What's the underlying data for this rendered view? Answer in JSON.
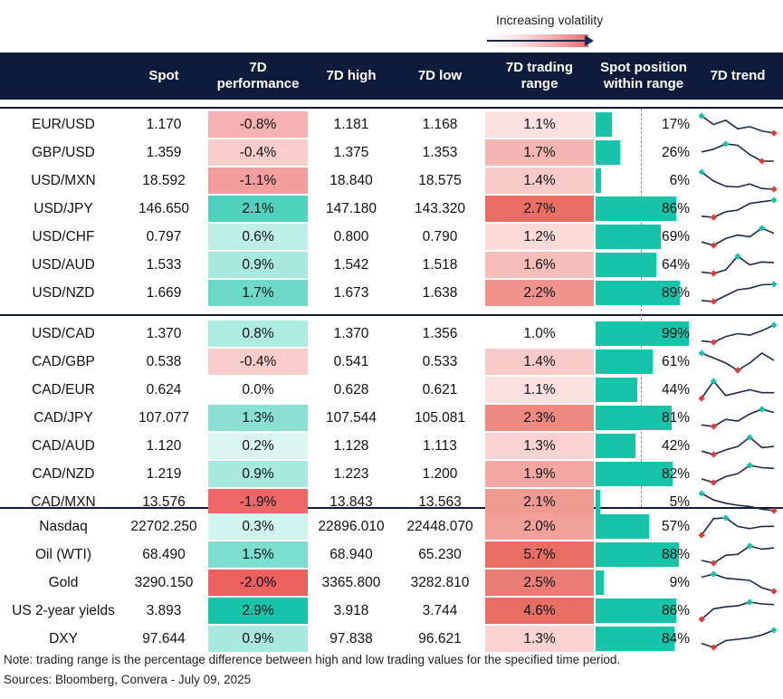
{
  "legend": {
    "label": "Increasing volatility"
  },
  "headers": {
    "spot": "Spot",
    "perf": "7D\nperformance",
    "high": "7D high",
    "low": "7D low",
    "range": "7D trading\nrange",
    "position": "Spot position\nwithin range",
    "trend": "7D trend"
  },
  "colors": {
    "header_bg": "#0e1b3a",
    "bar": "#17c3a9",
    "trend_line": "#1b2a4a",
    "trend_high": "#17c3a9",
    "trend_low": "#e03c3c"
  },
  "chart_data": {
    "type": "table",
    "groups": [
      {
        "rows": [
          {
            "name": "EUR/USD",
            "spot": "1.170",
            "perf": "-0.8%",
            "perf_value": -0.8,
            "high": "1.181",
            "low": "1.168",
            "range": "1.1%",
            "range_value": 1.1,
            "position": "17%",
            "position_value": 17,
            "trend": [
              1.178,
              1.174,
              1.176,
              1.172,
              1.173,
              1.171,
              1.17
            ]
          },
          {
            "name": "GBP/USD",
            "spot": "1.359",
            "perf": "-0.4%",
            "perf_value": -0.4,
            "high": "1.375",
            "low": "1.353",
            "range": "1.7%",
            "range_value": 1.7,
            "position": "26%",
            "position_value": 26,
            "trend": [
              1.366,
              1.368,
              1.372,
              1.371,
              1.364,
              1.359,
              1.359
            ]
          },
          {
            "name": "USD/MXN",
            "spot": "18.592",
            "perf": "-1.1%",
            "perf_value": -1.1,
            "high": "18.840",
            "low": "18.575",
            "range": "1.4%",
            "range_value": 1.4,
            "position": "6%",
            "position_value": 6,
            "trend": [
              18.82,
              18.7,
              18.63,
              18.62,
              18.66,
              18.6,
              18.59
            ]
          },
          {
            "name": "USD/JPY",
            "spot": "146.650",
            "perf": "2.1%",
            "perf_value": 2.1,
            "high": "147.180",
            "low": "143.320",
            "range": "2.7%",
            "range_value": 2.7,
            "position": "86%",
            "position_value": 86,
            "trend": [
              143.8,
              143.6,
              144.6,
              144.9,
              146.1,
              146.4,
              146.7
            ]
          },
          {
            "name": "USD/CHF",
            "spot": "0.797",
            "perf": "0.6%",
            "perf_value": 0.6,
            "high": "0.800",
            "low": "0.790",
            "range": "1.2%",
            "range_value": 1.2,
            "position": "69%",
            "position_value": 69,
            "trend": [
              0.792,
              0.79,
              0.794,
              0.796,
              0.795,
              0.8,
              0.797
            ]
          },
          {
            "name": "USD/AUD",
            "spot": "1.533",
            "perf": "0.9%",
            "perf_value": 0.9,
            "high": "1.542",
            "low": "1.518",
            "range": "1.6%",
            "range_value": 1.6,
            "position": "64%",
            "position_value": 64,
            "trend": [
              1.52,
              1.518,
              1.523,
              1.542,
              1.53,
              1.534,
              1.533
            ]
          },
          {
            "name": "USD/NZD",
            "spot": "1.669",
            "perf": "1.7%",
            "perf_value": 1.7,
            "high": "1.673",
            "low": "1.638",
            "range": "2.2%",
            "range_value": 2.2,
            "position": "89%",
            "position_value": 89,
            "trend": [
              1.64,
              1.638,
              1.65,
              1.662,
              1.665,
              1.672,
              1.673
            ]
          }
        ]
      },
      {
        "rows": [
          {
            "name": "USD/CAD",
            "spot": "1.370",
            "perf": "0.8%",
            "perf_value": 0.8,
            "high": "1.370",
            "low": "1.356",
            "range": "1.0%",
            "range_value": 1.0,
            "position": "99%",
            "position_value": 99,
            "trend": [
              1.359,
              1.358,
              1.362,
              1.364,
              1.363,
              1.366,
              1.37
            ]
          },
          {
            "name": "CAD/GBP",
            "spot": "0.538",
            "perf": "-0.4%",
            "perf_value": -0.4,
            "high": "0.541",
            "low": "0.533",
            "range": "1.4%",
            "range_value": 1.4,
            "position": "61%",
            "position_value": 61,
            "trend": [
              0.541,
              0.539,
              0.537,
              0.534,
              0.537,
              0.541,
              0.538
            ]
          },
          {
            "name": "CAD/EUR",
            "spot": "0.624",
            "perf": "0.0%",
            "perf_value": 0.0,
            "high": "0.628",
            "low": "0.621",
            "range": "1.1%",
            "range_value": 1.1,
            "position": "44%",
            "position_value": 44,
            "trend": [
              0.622,
              0.628,
              0.623,
              0.624,
              0.625,
              0.624,
              0.624
            ]
          },
          {
            "name": "CAD/JPY",
            "spot": "107.077",
            "perf": "1.3%",
            "perf_value": 1.3,
            "high": "107.544",
            "low": "105.081",
            "range": "2.3%",
            "range_value": 2.3,
            "position": "81%",
            "position_value": 81,
            "trend": [
              105.5,
              105.3,
              106.2,
              106.0,
              106.9,
              107.5,
              107.1
            ]
          },
          {
            "name": "CAD/AUD",
            "spot": "1.120",
            "perf": "0.2%",
            "perf_value": 0.2,
            "high": "1.128",
            "low": "1.113",
            "range": "1.3%",
            "range_value": 1.3,
            "position": "42%",
            "position_value": 42,
            "trend": [
              1.116,
              1.113,
              1.117,
              1.12,
              1.128,
              1.119,
              1.12
            ]
          },
          {
            "name": "CAD/NZD",
            "spot": "1.219",
            "perf": "0.9%",
            "perf_value": 0.9,
            "high": "1.223",
            "low": "1.200",
            "range": "1.9%",
            "range_value": 1.9,
            "position": "82%",
            "position_value": 82,
            "trend": [
              1.205,
              1.2,
              1.208,
              1.212,
              1.223,
              1.22,
              1.219
            ]
          },
          {
            "name": "CAD/MXN",
            "spot": "13.576",
            "perf": "-1.9%",
            "perf_value": -1.9,
            "high": "13.843",
            "low": "13.563",
            "range": "2.1%",
            "range_value": 2.1,
            "position": "5%",
            "position_value": 5,
            "trend": [
              13.84,
              13.74,
              13.69,
              13.66,
              13.64,
              13.6,
              13.576
            ]
          }
        ]
      },
      {
        "rows": [
          {
            "name": "Nasdaq",
            "spot": "22702.250",
            "perf": "0.3%",
            "perf_value": 0.3,
            "high": "22896.010",
            "low": "22448.070",
            "range": "2.0%",
            "range_value": 2.0,
            "position": "57%",
            "position_value": 57,
            "trend": [
              22500,
              22880,
              22896,
              22700,
              22650,
              22700,
              22702
            ]
          },
          {
            "name": "Oil (WTI)",
            "spot": "68.490",
            "perf": "1.5%",
            "perf_value": 1.5,
            "high": "68.940",
            "low": "65.230",
            "range": "5.7%",
            "range_value": 5.7,
            "position": "88%",
            "position_value": 88,
            "trend": [
              65.8,
              65.2,
              66.9,
              67.1,
              68.9,
              68.2,
              68.5
            ]
          },
          {
            "name": "Gold",
            "spot": "3290.150",
            "perf": "-2.0%",
            "perf_value": -2.0,
            "high": "3365.800",
            "low": "3282.810",
            "range": "2.5%",
            "range_value": 2.5,
            "position": "9%",
            "position_value": 9,
            "trend": [
              3350,
              3365,
              3345,
              3340,
              3335,
              3300,
              3283
            ]
          },
          {
            "name": "US 2-year yields",
            "spot": "3.893",
            "perf": "2.9%",
            "perf_value": 2.9,
            "high": "3.918",
            "low": "3.744",
            "range": "4.6%",
            "range_value": 4.6,
            "position": "86%",
            "position_value": 86,
            "trend": [
              3.744,
              3.85,
              3.87,
              3.88,
              3.918,
              3.9,
              3.893
            ]
          },
          {
            "name": "DXY",
            "spot": "97.644",
            "perf": "0.9%",
            "perf_value": 0.9,
            "high": "97.838",
            "low": "96.621",
            "range": "1.3%",
            "range_value": 1.3,
            "position": "84%",
            "position_value": 84,
            "trend": [
              96.9,
              96.62,
              97.1,
              97.2,
              97.3,
              97.5,
              97.84
            ]
          }
        ]
      }
    ]
  },
  "footnote": "Note: trading range is the percentage difference between high and low trading values for the specified time period.",
  "sources": "Sources: Bloomberg, Convera - July 09, 2025"
}
